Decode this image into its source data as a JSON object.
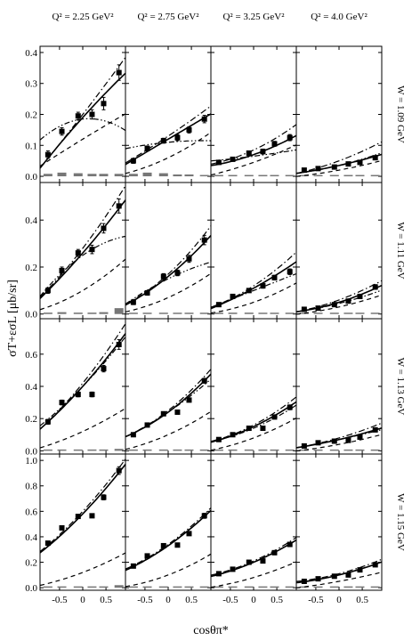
{
  "chart_data": {
    "type": "scatter",
    "layout": "4x4 panel grid",
    "xlabel": "cosθπ*",
    "ylabel": "σT+εσL [μb/sr]",
    "columns": [
      {
        "title": "Q² = 2.25 GeV²"
      },
      {
        "title": "Q² = 2.75 GeV²"
      },
      {
        "title": "Q² = 3.25 GeV²"
      },
      {
        "title": "Q² = 4.0 GeV²"
      }
    ],
    "rows": [
      {
        "label": "W = 1.09 GeV",
        "ylim": [
          -0.02,
          0.42
        ],
        "yticks": [
          0.0,
          0.1,
          0.2,
          0.3,
          0.4
        ],
        "yticklabels": [
          "0.0",
          "0.1",
          "0.2",
          "0.3",
          "0.4"
        ]
      },
      {
        "label": "W = 1.11 GeV",
        "ylim": [
          -0.02,
          0.56
        ],
        "yticks": [
          0.0,
          0.2,
          0.4
        ],
        "yticklabels": [
          "0.0",
          "0.2",
          "0.4"
        ]
      },
      {
        "label": "W = 1.13 GeV",
        "ylim": [
          -0.02,
          0.82
        ],
        "yticks": [
          0.0,
          0.2,
          0.4,
          0.6
        ],
        "yticklabels": [
          "0.0",
          "0.2",
          "0.4",
          "0.6"
        ]
      },
      {
        "label": "W = 1.15 GeV",
        "ylim": [
          -0.02,
          1.05
        ],
        "yticks": [
          0.0,
          0.2,
          0.4,
          0.6,
          0.8,
          1.0
        ],
        "yticklabels": [
          "0.0",
          "0.2",
          "0.4",
          "0.6",
          "0.8",
          "1.0"
        ]
      }
    ],
    "xlim": [
      -0.92,
      0.92
    ],
    "xticks": [
      -0.5,
      0.0,
      0.5
    ],
    "xticklabels": [
      "-0.5",
      "0",
      "0.5"
    ],
    "points_x": [
      -0.75,
      -0.45,
      -0.1,
      0.2,
      0.45,
      0.78
    ],
    "panels": [
      [
        {
          "y": [
            0.07,
            0.145,
            0.195,
            0.2,
            0.235,
            0.335
          ],
          "err": [
            0.012,
            0.012,
            0.012,
            0.015,
            0.02,
            0.025
          ],
          "curves": {
            "solid": [
              0.03,
              0.19,
              0.33
            ],
            "dashdot": [
              0.03,
              0.2,
              0.38
            ],
            "dashdotdot": [
              0.12,
              0.185,
              0.15
            ],
            "dashed": [
              0.035,
              0.12,
              0.2
            ]
          },
          "sys": [
            0.008,
            0.012,
            0.01,
            0.008,
            0.008,
            0.008
          ]
        },
        {
          "y": [
            0.05,
            0.09,
            0.115,
            0.125,
            0.15,
            0.185
          ],
          "err": [
            0.008,
            0.008,
            0.008,
            0.01,
            0.01,
            0.012
          ],
          "curves": {
            "solid": [
              0.04,
              0.12,
              0.2
            ],
            "dashdot": [
              0.045,
              0.13,
              0.225
            ],
            "dashdotdot": [
              0.09,
              0.11,
              0.115
            ],
            "dashed": [
              0.01,
              0.06,
              0.14
            ]
          },
          "sys": [
            0.008,
            0.012,
            0.01,
            0.006,
            0.006,
            0.004
          ]
        },
        {
          "y": [
            0.045,
            0.055,
            0.075,
            0.08,
            0.105,
            0.125
          ],
          "err": [
            0.006,
            0.006,
            0.006,
            0.008,
            0.008,
            0.01
          ],
          "curves": {
            "solid": [
              0.035,
              0.07,
              0.13
            ],
            "dashdot": [
              0.04,
              0.085,
              0.165
            ],
            "dashdotdot": [
              0.05,
              0.065,
              0.085
            ],
            "dashed": [
              0.005,
              0.045,
              0.1
            ]
          },
          "sys": [
            0.004,
            0.004,
            0.004,
            0.004,
            0.004,
            0.004
          ]
        },
        {
          "y": [
            0.02,
            0.025,
            0.03,
            0.04,
            0.045,
            0.06
          ],
          "err": [
            0.005,
            0.005,
            0.005,
            0.005,
            0.005,
            0.006
          ],
          "curves": {
            "solid": [
              0.01,
              0.035,
              0.07
            ],
            "dashdot": [
              0.01,
              0.05,
              0.11
            ],
            "dashdotdot": [
              0.01,
              0.035,
              0.075
            ],
            "dashed": [
              0.0,
              0.02,
              0.05
            ]
          },
          "sys": [
            0.002,
            0.002,
            0.002,
            0.002,
            0.002,
            0.002
          ]
        }
      ],
      [
        {
          "y": [
            0.1,
            0.185,
            0.26,
            0.275,
            0.365,
            0.46
          ],
          "err": [
            0.012,
            0.015,
            0.015,
            0.018,
            0.02,
            0.03
          ],
          "curves": {
            "solid": [
              0.07,
              0.26,
              0.48
            ],
            "dashdot": [
              0.075,
              0.28,
              0.54
            ],
            "dashdotdot": [
              0.08,
              0.25,
              0.33
            ],
            "dashed": [
              0.02,
              0.1,
              0.23
            ]
          },
          "sys": [
            0.006,
            0.008,
            0.006,
            0.006,
            0.008,
            0.025
          ]
        },
        {
          "y": [
            0.05,
            0.09,
            0.16,
            0.175,
            0.235,
            0.315
          ],
          "err": [
            0.01,
            0.01,
            0.012,
            0.012,
            0.015,
            0.02
          ],
          "curves": {
            "solid": [
              0.04,
              0.16,
              0.33
            ],
            "dashdot": [
              0.045,
              0.17,
              0.37
            ],
            "dashdotdot": [
              0.045,
              0.15,
              0.22
            ],
            "dashed": [
              0.01,
              0.07,
              0.17
            ]
          },
          "sys": [
            0.004,
            0.004,
            0.004,
            0.004,
            0.004,
            0.004
          ]
        },
        {
          "y": [
            0.04,
            0.075,
            0.1,
            0.12,
            0.155,
            0.18
          ],
          "err": [
            0.006,
            0.008,
            0.008,
            0.01,
            0.01,
            0.012
          ],
          "curves": {
            "solid": [
              0.025,
              0.11,
              0.22
            ],
            "dashdot": [
              0.03,
              0.12,
              0.26
            ],
            "dashdotdot": [
              0.03,
              0.1,
              0.17
            ],
            "dashed": [
              0.005,
              0.05,
              0.13
            ]
          },
          "sys": [
            0.006,
            0.006,
            0.006,
            0.004,
            0.004,
            0.004
          ]
        },
        {
          "y": [
            0.02,
            0.025,
            0.04,
            0.055,
            0.075,
            0.115
          ],
          "err": [
            0.005,
            0.005,
            0.006,
            0.006,
            0.008,
            0.01
          ],
          "curves": {
            "solid": [
              0.01,
              0.05,
              0.12
            ],
            "dashdot": [
              0.01,
              0.06,
              0.14
            ],
            "dashdotdot": [
              0.01,
              0.045,
              0.1
            ],
            "dashed": [
              0.0,
              0.03,
              0.08
            ]
          },
          "sys": [
            0.002,
            0.002,
            0.002,
            0.002,
            0.002,
            0.002
          ]
        }
      ],
      [
        {
          "y": [
            0.18,
            0.3,
            0.35,
            0.35,
            0.51,
            0.66
          ],
          "err": [
            0.015,
            0.015,
            0.015,
            0.015,
            0.02,
            0.03
          ],
          "curves": {
            "solid": [
              0.14,
              0.4,
              0.72
            ],
            "dashdot": [
              0.14,
              0.42,
              0.78
            ],
            "dashdotdot": [
              0.16,
              0.4,
              0.7
            ],
            "dashed": [
              0.02,
              0.12,
              0.26
            ]
          },
          "sys": [
            0.004,
            0.004,
            0.004,
            0.004,
            0.006,
            0.012
          ]
        },
        {
          "y": [
            0.1,
            0.16,
            0.23,
            0.24,
            0.315,
            0.435
          ],
          "err": [
            0.01,
            0.01,
            0.01,
            0.012,
            0.012,
            0.015
          ],
          "curves": {
            "solid": [
              0.09,
              0.24,
              0.47
            ],
            "dashdot": [
              0.09,
              0.25,
              0.5
            ],
            "dashdotdot": [
              0.09,
              0.24,
              0.44
            ],
            "dashed": [
              0.01,
              0.1,
              0.24
            ]
          },
          "sys": [
            0.004,
            0.004,
            0.004,
            0.004,
            0.004,
            0.004
          ]
        },
        {
          "y": [
            0.07,
            0.1,
            0.14,
            0.14,
            0.21,
            0.27
          ],
          "err": [
            0.008,
            0.008,
            0.01,
            0.01,
            0.012,
            0.015
          ],
          "curves": {
            "solid": [
              0.055,
              0.15,
              0.3
            ],
            "dashdot": [
              0.06,
              0.16,
              0.33
            ],
            "dashdotdot": [
              0.06,
              0.14,
              0.28
            ],
            "dashed": [
              0.005,
              0.08,
              0.2
            ]
          },
          "sys": [
            0.003,
            0.003,
            0.003,
            0.003,
            0.003,
            0.003
          ]
        },
        {
          "y": [
            0.03,
            0.05,
            0.06,
            0.065,
            0.085,
            0.13
          ],
          "err": [
            0.006,
            0.006,
            0.008,
            0.008,
            0.01,
            0.012
          ],
          "curves": {
            "solid": [
              0.02,
              0.07,
              0.14
            ],
            "dashdot": [
              0.02,
              0.08,
              0.17
            ],
            "dashdotdot": [
              0.02,
              0.07,
              0.13
            ],
            "dashed": [
              0.0,
              0.04,
              0.1
            ]
          },
          "sys": [
            0.002,
            0.002,
            0.002,
            0.002,
            0.002,
            0.002
          ]
        }
      ],
      [
        {
          "y": [
            0.35,
            0.47,
            0.56,
            0.565,
            0.71,
            0.92
          ],
          "err": [
            0.015,
            0.015,
            0.015,
            0.015,
            0.02,
            0.03
          ],
          "curves": {
            "solid": [
              0.28,
              0.58,
              0.96
            ],
            "dashdot": [
              0.29,
              0.6,
              1.0
            ],
            "dashdotdot": [
              0.28,
              0.58,
              0.96
            ],
            "dashed": [
              0.02,
              0.12,
              0.27
            ]
          },
          "sys": [
            0.004,
            0.004,
            0.004,
            0.004,
            0.006,
            0.02
          ]
        },
        {
          "y": [
            0.17,
            0.25,
            0.33,
            0.335,
            0.425,
            0.565
          ],
          "err": [
            0.012,
            0.012,
            0.012,
            0.012,
            0.015,
            0.02
          ],
          "curves": {
            "solid": [
              0.14,
              0.33,
              0.6
            ],
            "dashdot": [
              0.15,
              0.34,
              0.62
            ],
            "dashdotdot": [
              0.14,
              0.33,
              0.6
            ],
            "dashed": [
              0.01,
              0.1,
              0.26
            ]
          },
          "sys": [
            0.004,
            0.004,
            0.004,
            0.004,
            0.004,
            0.004
          ]
        },
        {
          "y": [
            0.11,
            0.145,
            0.2,
            0.21,
            0.275,
            0.34
          ],
          "err": [
            0.01,
            0.01,
            0.01,
            0.012,
            0.012,
            0.015
          ],
          "curves": {
            "solid": [
              0.09,
              0.2,
              0.37
            ],
            "dashdot": [
              0.1,
              0.21,
              0.39
            ],
            "dashdotdot": [
              0.09,
              0.2,
              0.37
            ],
            "dashed": [
              0.005,
              0.08,
              0.2
            ]
          },
          "sys": [
            0.003,
            0.003,
            0.003,
            0.003,
            0.003,
            0.003
          ]
        },
        {
          "y": [
            0.05,
            0.07,
            0.09,
            0.1,
            0.14,
            0.18
          ],
          "err": [
            0.008,
            0.008,
            0.008,
            0.01,
            0.012,
            0.015
          ],
          "curves": {
            "solid": [
              0.04,
              0.1,
              0.2
            ],
            "dashdot": [
              0.05,
              0.11,
              0.22
            ],
            "dashdotdot": [
              0.04,
              0.1,
              0.2
            ],
            "dashed": [
              0.0,
              0.05,
              0.12
            ]
          },
          "sys": [
            0.002,
            0.002,
            0.002,
            0.002,
            0.002,
            0.002
          ]
        }
      ]
    ],
    "curve_styles": {
      "solid": "solid",
      "dashdot": "dash-dot",
      "dashdotdot": "dash-dot-dot",
      "dashed": "dashed"
    },
    "sys_color": "#777777",
    "marker_color": "#000000"
  }
}
